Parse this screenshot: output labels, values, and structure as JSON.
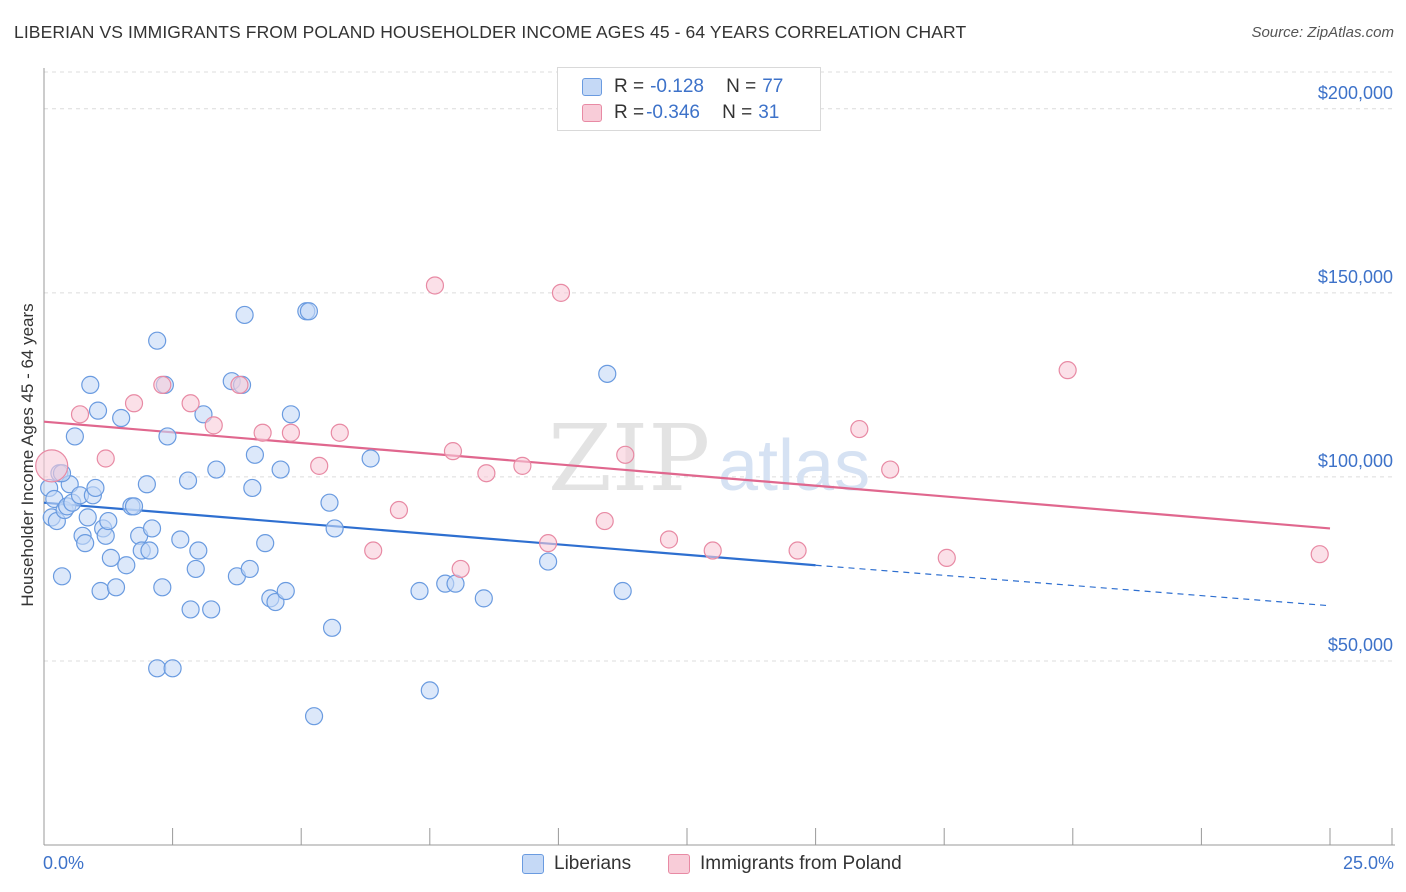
{
  "header": {
    "title": "LIBERIAN VS IMMIGRANTS FROM POLAND HOUSEHOLDER INCOME AGES 45 - 64 YEARS CORRELATION CHART",
    "source": "Source: ZipAtlas.com"
  },
  "watermark": {
    "zip": "ZIP",
    "atlas": "atlas"
  },
  "stats": [
    {
      "r_label": "R =",
      "r_value": "-0.128",
      "n_label": "N =",
      "n_value": "77",
      "color": "#6a9be0",
      "fill": "#c5d9f6"
    },
    {
      "r_label": "R =",
      "r_value": "-0.346",
      "n_label": "N =",
      "n_value": "31",
      "color": "#e88aa4",
      "fill": "#f8ccd8"
    }
  ],
  "chart_data": {
    "type": "scatter",
    "title": "LIBERIAN VS IMMIGRANTS FROM POLAND HOUSEHOLDER INCOME AGES 45 - 64 YEARS CORRELATION CHART",
    "xlabel": "",
    "ylabel": "Householder Income Ages 45 - 64 years",
    "xlim": [
      0,
      25
    ],
    "ylim": [
      0,
      210000
    ],
    "x_tick_labels": [
      "0.0%",
      "25.0%"
    ],
    "y_ticks": [
      50000,
      100000,
      150000,
      200000
    ],
    "y_tick_labels": [
      "$50,000",
      "$100,000",
      "$150,000",
      "$200,000"
    ],
    "grid": true,
    "legend_position": "bottom-center",
    "series": [
      {
        "name": "Liberians",
        "color": "#6a9be0",
        "fill": "#c5d9f6",
        "trend": {
          "x0": 0,
          "y0": 93000,
          "x1": 15,
          "y1": 76000,
          "dashed_to_x": 25,
          "dashed_to_y": 65000
        },
        "points": [
          [
            0.1,
            97000
          ],
          [
            0.15,
            89000
          ],
          [
            0.2,
            94000
          ],
          [
            0.25,
            88000
          ],
          [
            0.3,
            101000
          ],
          [
            0.35,
            73000
          ],
          [
            0.4,
            91000
          ],
          [
            0.45,
            92000
          ],
          [
            0.5,
            98000
          ],
          [
            0.55,
            93000
          ],
          [
            0.6,
            111000
          ],
          [
            0.7,
            95000
          ],
          [
            0.75,
            84000
          ],
          [
            0.8,
            82000
          ],
          [
            0.85,
            89000
          ],
          [
            0.9,
            125000
          ],
          [
            0.95,
            95000
          ],
          [
            1.0,
            97000
          ],
          [
            1.05,
            118000
          ],
          [
            1.1,
            69000
          ],
          [
            1.15,
            86000
          ],
          [
            1.2,
            84000
          ],
          [
            1.25,
            88000
          ],
          [
            1.3,
            78000
          ],
          [
            1.4,
            70000
          ],
          [
            1.5,
            116000
          ],
          [
            1.6,
            76000
          ],
          [
            1.7,
            92000
          ],
          [
            1.75,
            92000
          ],
          [
            1.85,
            84000
          ],
          [
            1.9,
            80000
          ],
          [
            2.0,
            98000
          ],
          [
            2.05,
            80000
          ],
          [
            2.1,
            86000
          ],
          [
            2.2,
            137000
          ],
          [
            2.3,
            70000
          ],
          [
            2.35,
            125000
          ],
          [
            2.4,
            111000
          ],
          [
            2.65,
            83000
          ],
          [
            2.8,
            99000
          ],
          [
            2.85,
            64000
          ],
          [
            2.95,
            75000
          ],
          [
            3.0,
            80000
          ],
          [
            3.1,
            117000
          ],
          [
            3.25,
            64000
          ],
          [
            3.35,
            102000
          ],
          [
            3.65,
            126000
          ],
          [
            3.75,
            73000
          ],
          [
            3.85,
            125000
          ],
          [
            3.9,
            144000
          ],
          [
            4.0,
            75000
          ],
          [
            4.05,
            97000
          ],
          [
            4.1,
            106000
          ],
          [
            4.3,
            82000
          ],
          [
            4.4,
            67000
          ],
          [
            4.5,
            66000
          ],
          [
            4.6,
            102000
          ],
          [
            4.7,
            69000
          ],
          [
            4.8,
            117000
          ],
          [
            5.1,
            145000
          ],
          [
            5.15,
            145000
          ],
          [
            5.55,
            93000
          ],
          [
            5.65,
            86000
          ],
          [
            5.25,
            35000
          ],
          [
            5.6,
            59000
          ],
          [
            2.2,
            48000
          ],
          [
            2.5,
            48000
          ],
          [
            6.35,
            105000
          ],
          [
            7.3,
            69000
          ],
          [
            7.5,
            42000
          ],
          [
            7.8,
            71000
          ],
          [
            8.0,
            71000
          ],
          [
            8.55,
            67000
          ],
          [
            9.8,
            77000
          ],
          [
            10.95,
            128000
          ],
          [
            11.25,
            69000
          ],
          [
            0.35,
            101000
          ]
        ]
      },
      {
        "name": "Immigrants from Poland",
        "color": "#e88aa4",
        "fill": "#f8ccd8",
        "trend": {
          "x0": 0,
          "y0": 115000,
          "x1": 25,
          "y1": 86000
        },
        "points": [
          [
            0.15,
            103000
          ],
          [
            0.7,
            117000
          ],
          [
            1.2,
            105000
          ],
          [
            1.75,
            120000
          ],
          [
            2.3,
            125000
          ],
          [
            2.85,
            120000
          ],
          [
            3.3,
            114000
          ],
          [
            3.8,
            125000
          ],
          [
            4.25,
            112000
          ],
          [
            4.8,
            112000
          ],
          [
            5.35,
            103000
          ],
          [
            5.75,
            112000
          ],
          [
            6.4,
            80000
          ],
          [
            6.9,
            91000
          ],
          [
            7.6,
            152000
          ],
          [
            7.95,
            107000
          ],
          [
            8.1,
            75000
          ],
          [
            8.6,
            101000
          ],
          [
            9.3,
            103000
          ],
          [
            9.8,
            82000
          ],
          [
            10.05,
            150000
          ],
          [
            10.9,
            88000
          ],
          [
            11.3,
            106000
          ],
          [
            12.15,
            83000
          ],
          [
            13.0,
            80000
          ],
          [
            14.65,
            80000
          ],
          [
            15.85,
            113000
          ],
          [
            16.45,
            102000
          ],
          [
            17.55,
            78000
          ],
          [
            19.9,
            129000
          ],
          [
            24.8,
            79000
          ]
        ]
      }
    ]
  }
}
